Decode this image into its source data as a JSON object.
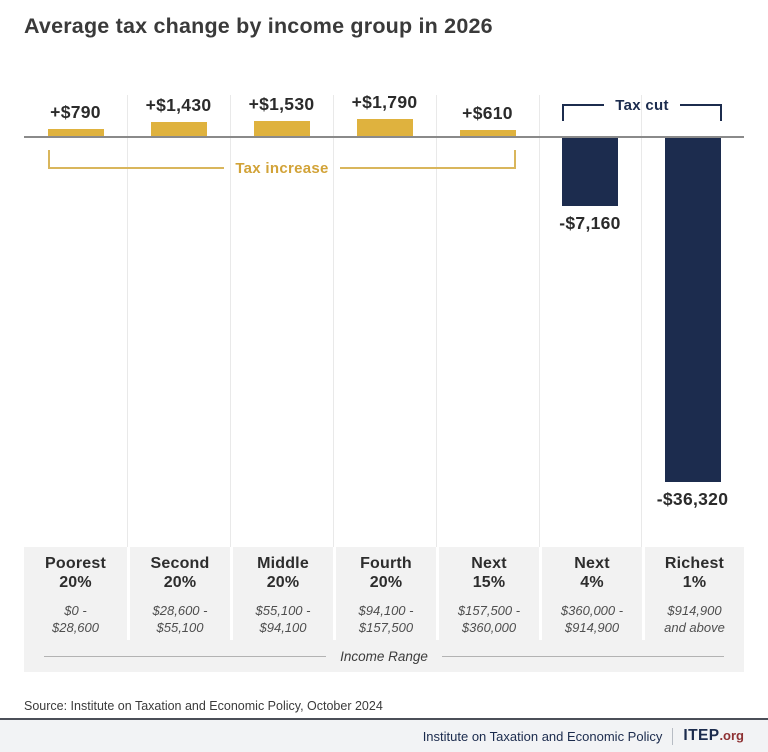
{
  "title": "Average tax change by income group in 2026",
  "chart_data": {
    "type": "bar",
    "title": "Average tax change by income group in 2026",
    "categories": [
      "Poorest 20%",
      "Second 20%",
      "Middle 20%",
      "Fourth 20%",
      "Next 15%",
      "Next 4%",
      "Richest 1%"
    ],
    "categories_display": [
      "Poorest\n20%",
      "Second\n20%",
      "Middle\n20%",
      "Fourth\n20%",
      "Next\n15%",
      "Next\n4%",
      "Richest\n1%"
    ],
    "income_ranges": [
      "$0 - $28,600",
      "$28,600 - $55,100",
      "$55,100 - $94,100",
      "$94,100 - $157,500",
      "$157,500 - $360,000",
      "$360,000 - $914,900",
      "$914,900 and above"
    ],
    "income_ranges_display": [
      "$0 -\n$28,600",
      "$28,600 -\n$55,100",
      "$55,100 -\n$94,100",
      "$94,100 -\n$157,500",
      "$157,500 -\n$360,000",
      "$360,000 -\n$914,900",
      "$914,900\nand above"
    ],
    "values": [
      790,
      1430,
      1530,
      1790,
      610,
      -7160,
      -36320
    ],
    "value_labels": [
      "+$790",
      "+$1,430",
      "+$1,530",
      "+$1,790",
      "+$610",
      "-$7,160",
      "-$36,320"
    ],
    "xlabel": "Income Range",
    "baseline": 0,
    "ylim": [
      -36320,
      1790
    ],
    "grid": "vertical column separators only",
    "legend_position": "none",
    "annotations": [
      {
        "label": "Tax increase",
        "applies_to": [
          "Poorest 20%",
          "Second 20%",
          "Middle 20%",
          "Fourth 20%",
          "Next 15%"
        ],
        "color": "#DFB23E",
        "position": "below baseline"
      },
      {
        "label": "Tax cut",
        "applies_to": [
          "Next 4%",
          "Richest 1%"
        ],
        "color": "#1C2C4E",
        "position": "above bars"
      }
    ],
    "colors": {
      "tax_increase": "#DFB23E",
      "tax_cut": "#1C2C4E"
    }
  },
  "annotations": {
    "tax_increase": "Tax increase",
    "tax_cut": "Tax cut"
  },
  "source": "Source: Institute on Taxation and Economic Policy, October 2024",
  "footer": {
    "org": "Institute on Taxation and Economic Policy",
    "brand": "ITEP",
    "brand_suffix": ".org"
  }
}
